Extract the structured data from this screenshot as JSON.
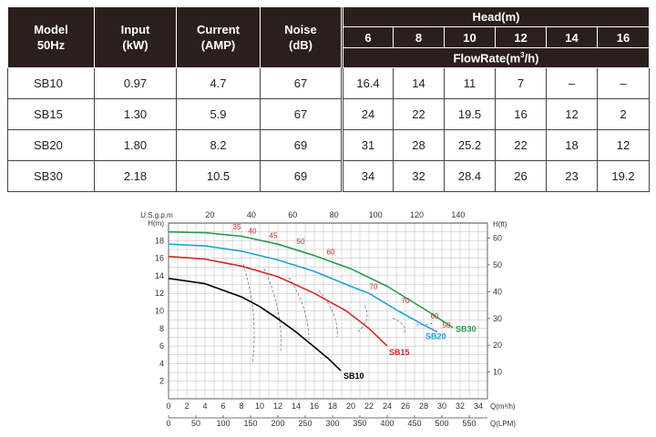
{
  "table": {
    "header": {
      "model": [
        "Model",
        "50Hz"
      ],
      "input": [
        "Input",
        "(kW)"
      ],
      "current": [
        "Current",
        "(AMP)"
      ],
      "noise": [
        "Noise",
        "(dB)"
      ],
      "head_group": "Head(m)",
      "heads": [
        "6",
        "8",
        "10",
        "12",
        "14",
        "16"
      ],
      "flow_label": "FlowRate(m",
      "flow_sup": "3",
      "flow_tail": "/h)"
    },
    "rows": [
      {
        "model": "SB10",
        "input": "0.97",
        "current": "4.7",
        "noise": "67",
        "flows": [
          "16.4",
          "14",
          "11",
          "7",
          "–",
          "–"
        ]
      },
      {
        "model": "SB15",
        "input": "1.30",
        "current": "5.9",
        "noise": "67",
        "flows": [
          "24",
          "22",
          "19.5",
          "16",
          "12",
          "2"
        ]
      },
      {
        "model": "SB20",
        "input": "1.80",
        "current": "8.2",
        "noise": "69",
        "flows": [
          "31",
          "28",
          "25.2",
          "22",
          "18",
          "12"
        ]
      },
      {
        "model": "SB30",
        "input": "2.18",
        "current": "10.5",
        "noise": "69",
        "flows": [
          "34",
          "32",
          "28.4",
          "26",
          "23",
          "19.2"
        ]
      }
    ]
  },
  "chart_data": {
    "type": "line",
    "xlabel": "Q(m³/h)",
    "ylabel": "H(m)",
    "y2label": "H(ft)",
    "top_axis_label": "U.S.g.p.m",
    "bottom2_axis_label": "Q(LPM)",
    "xlim": [
      0,
      35
    ],
    "ylim": [
      0,
      20
    ],
    "x_ticks": [
      0,
      2,
      4,
      6,
      8,
      10,
      12,
      14,
      16,
      18,
      20,
      22,
      24,
      26,
      28,
      30,
      32,
      34
    ],
    "y_ticks": [
      2,
      4,
      6,
      8,
      10,
      12,
      14,
      16,
      18
    ],
    "ft_ticks": [
      10,
      20,
      30,
      40,
      50,
      60
    ],
    "gpm_ticks": [
      20,
      40,
      60,
      80,
      100,
      120,
      140
    ],
    "lpm_ticks": [
      0,
      50,
      100,
      150,
      200,
      250,
      300,
      350,
      400,
      450,
      500,
      550
    ],
    "grid": true,
    "series": [
      {
        "name": "SB10",
        "color": "#000000",
        "x": [
          0,
          4,
          8,
          10,
          12,
          14,
          16,
          17.5,
          18.9
        ],
        "y": [
          13.7,
          13.1,
          11.6,
          10.5,
          9.1,
          7.6,
          5.9,
          4.6,
          3.2
        ]
      },
      {
        "name": "SB15",
        "color": "#d42a2a",
        "x": [
          0,
          4,
          8,
          12,
          16,
          19.5,
          22,
          24
        ],
        "y": [
          16.2,
          15.9,
          15.1,
          13.9,
          12,
          10,
          8,
          6
        ]
      },
      {
        "name": "SB20",
        "color": "#1fa3d6",
        "x": [
          0,
          4,
          8,
          12,
          16,
          20,
          22,
          25.2,
          28,
          29.5
        ],
        "y": [
          17.6,
          17.4,
          16.8,
          15.8,
          14.5,
          12.8,
          12,
          10,
          8.4,
          7.6
        ]
      },
      {
        "name": "SB30",
        "color": "#2a9a4a",
        "x": [
          0,
          4,
          8,
          12,
          16,
          20,
          24,
          28.4,
          31.2
        ],
        "y": [
          19,
          18.9,
          18.5,
          17.6,
          16.3,
          14.8,
          12.8,
          10,
          8.1
        ]
      }
    ],
    "efficiency_labels": [
      "35",
      "40",
      "45",
      "50",
      "60",
      "70",
      "70",
      "60",
      "50"
    ]
  }
}
